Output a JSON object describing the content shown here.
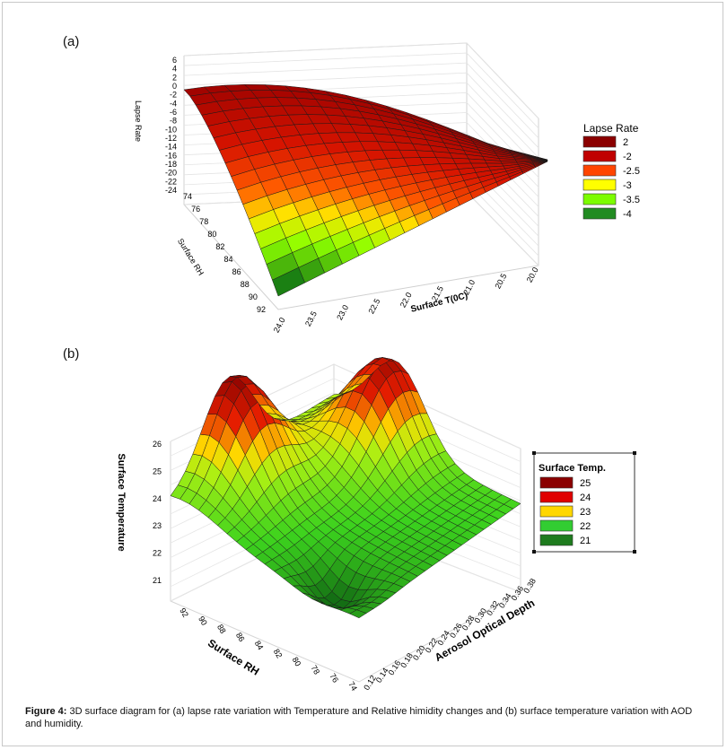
{
  "chart_data": [
    {
      "type": "surface",
      "panel_label": "(a)",
      "zlabel": "Lapse Rate",
      "xlabel": "Surface T(0C)",
      "ylabel": "Surface RH",
      "z_ticks": [
        "6",
        "4",
        "2",
        "0",
        "-2",
        "-4",
        "-6",
        "-8",
        "-10",
        "-12",
        "-14",
        "-16",
        "-18",
        "-20",
        "-22",
        "-24"
      ],
      "x_ticks": [
        "24.0",
        "23.5",
        "23.0",
        "22.5",
        "22.0",
        "21.5",
        "21.0",
        "20.5",
        "20.0"
      ],
      "y_ticks": [
        "74",
        "76",
        "78",
        "80",
        "82",
        "84",
        "86",
        "88",
        "90",
        "92"
      ],
      "legend_title": "Lapse Rate",
      "legend": [
        {
          "label": "2",
          "color": "#8B0000"
        },
        {
          "label": "-2",
          "color": "#C00000"
        },
        {
          "label": "-2.5",
          "color": "#FF4500"
        },
        {
          "label": "-3",
          "color": "#FFFF00"
        },
        {
          "label": "-3.5",
          "color": "#7CFC00"
        },
        {
          "label": "-4",
          "color": "#228B22"
        }
      ]
    },
    {
      "type": "surface",
      "panel_label": "(b)",
      "zlabel": "Surface Temperature",
      "xlabel": "Surface RH",
      "ylabel": "Aerosol Optical Depth",
      "z_ticks": [
        "26",
        "25",
        "24",
        "23",
        "22",
        "21"
      ],
      "x_ticks": [
        "92",
        "90",
        "88",
        "86",
        "84",
        "82",
        "80",
        "78",
        "76",
        "74"
      ],
      "y_ticks": [
        "0.12",
        "0.14",
        "0.16",
        "0.18",
        "0.20",
        "0.22",
        "0.24",
        "0.26",
        "0.28",
        "0.30",
        "0.32",
        "0.34",
        "0.36",
        "0.38"
      ],
      "legend_title": "Surface Temp.",
      "legend": [
        {
          "label": "25",
          "color": "#8B0000"
        },
        {
          "label": "24",
          "color": "#E00000"
        },
        {
          "label": "23",
          "color": "#FFD700"
        },
        {
          "label": "22",
          "color": "#32CD32"
        },
        {
          "label": "21",
          "color": "#1E7B1E"
        }
      ]
    }
  ],
  "caption": {
    "prefix": "Figure 4:",
    "text": " 3D surface diagram for (a) lapse rate variation with Temperature and Relative himidity changes and (b) surface temperature variation with AOD and humidity."
  }
}
